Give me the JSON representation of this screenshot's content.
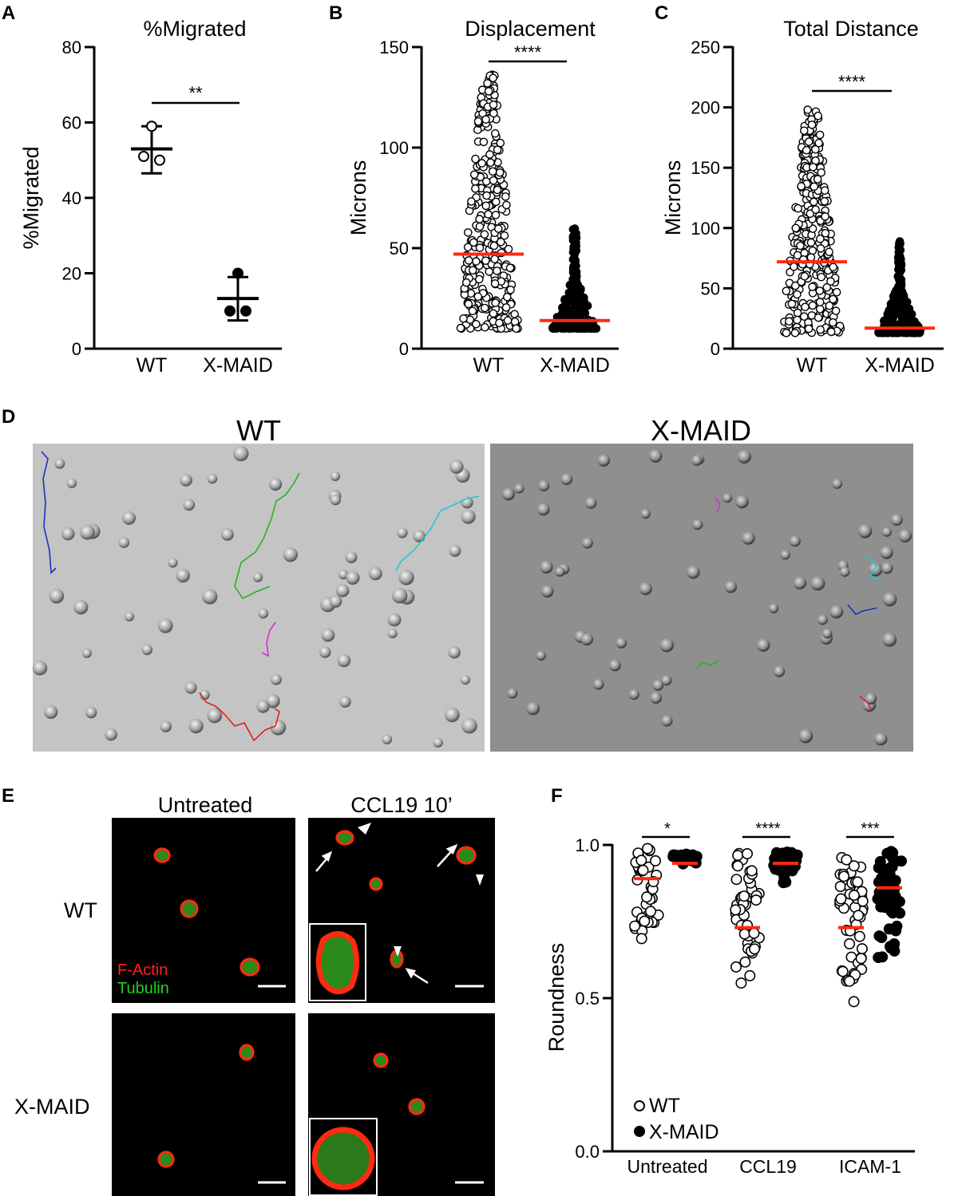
{
  "figure": {
    "panel_letters": [
      "A",
      "B",
      "C",
      "D",
      "E",
      "F"
    ]
  },
  "chart_data": [
    {
      "type": "scatter",
      "panel": "A",
      "title": "%Migrated",
      "xlabel": "",
      "ylabel": "%Migrated",
      "categories": [
        "WT",
        "X-MAID"
      ],
      "ylim": [
        0,
        80
      ],
      "yticks": [
        0,
        20,
        40,
        60,
        80
      ],
      "series": [
        {
          "category": "WT",
          "marker": "open",
          "points": [
            59,
            51,
            50
          ],
          "mean": 53,
          "sd_low": 46.5,
          "sd_high": 59
        },
        {
          "category": "X-MAID",
          "marker": "filled",
          "points": [
            20,
            10,
            10
          ],
          "mean": 13.3,
          "sd_low": 7.5,
          "sd_high": 19
        }
      ],
      "significance": "**"
    },
    {
      "type": "scatter",
      "panel": "B",
      "title": "Displacement",
      "xlabel": "",
      "ylabel": "Microns",
      "categories": [
        "WT",
        "X-MAID"
      ],
      "ylim": [
        0,
        150
      ],
      "yticks": [
        0,
        50,
        100,
        150
      ],
      "series": [
        {
          "category": "WT",
          "marker": "open",
          "n": 320,
          "min": 10,
          "max": 137,
          "median_line": 47
        },
        {
          "category": "X-MAID",
          "marker": "filled",
          "n": 200,
          "min": 10,
          "max": 60,
          "median_line": 14
        }
      ],
      "significance": "****"
    },
    {
      "type": "scatter",
      "panel": "C",
      "title": "Total Distance",
      "xlabel": "",
      "ylabel": "Microns",
      "categories": [
        "WT",
        "X-MAID"
      ],
      "ylim": [
        0,
        250
      ],
      "yticks": [
        0,
        50,
        100,
        150,
        200,
        250
      ],
      "series": [
        {
          "category": "WT",
          "marker": "open",
          "n": 330,
          "min": 13,
          "max": 198,
          "median_line": 72
        },
        {
          "category": "X-MAID",
          "marker": "filled",
          "n": 200,
          "min": 13,
          "max": 90,
          "median_line": 17
        }
      ],
      "significance": "****"
    },
    {
      "type": "scatter",
      "panel": "F",
      "title": "",
      "xlabel": "",
      "ylabel": "Roundness",
      "categories": [
        "Untreated",
        "CCL19",
        "ICAM-1"
      ],
      "ylim": [
        0,
        1
      ],
      "yticks": [
        "0.0",
        "0.5",
        "1.0"
      ],
      "legend": {
        "placement": "bottom-left",
        "entries": [
          "WT",
          "X-MAID"
        ]
      },
      "series": [
        {
          "name": "WT",
          "marker": "open",
          "groups": [
            {
              "category": "Untreated",
              "n": 40,
              "min": 0.66,
              "max": 0.99,
              "median_line": 0.89
            },
            {
              "category": "CCL19",
              "n": 45,
              "min": 0.52,
              "max": 0.98,
              "median_line": 0.73
            },
            {
              "category": "ICAM-1",
              "n": 50,
              "min": 0.39,
              "max": 0.96,
              "median_line": 0.73
            }
          ]
        },
        {
          "name": "X-MAID",
          "marker": "filled",
          "groups": [
            {
              "category": "Untreated",
              "n": 25,
              "min": 0.92,
              "max": 0.97,
              "median_line": 0.94
            },
            {
              "category": "CCL19",
              "n": 35,
              "min": 0.87,
              "max": 0.98,
              "median_line": 0.94
            },
            {
              "category": "ICAM-1",
              "n": 55,
              "min": 0.53,
              "max": 0.98,
              "median_line": 0.86
            }
          ]
        }
      ],
      "significance": [
        "*",
        "****",
        "***"
      ]
    }
  ],
  "panel_d": {
    "titles": [
      "WT",
      "X-MAID"
    ],
    "track_colors": [
      "#1f2fbf",
      "#22b522",
      "#20c8d2",
      "#d030d0",
      "#e02020"
    ]
  },
  "panel_e": {
    "column_titles": [
      "Untreated",
      "CCL19 10’"
    ],
    "row_labels": [
      "WT",
      "X-MAID"
    ],
    "stain_labels": [
      {
        "text": "F-Actin",
        "color": "#ff2020"
      },
      {
        "text": "Tubulin",
        "color": "#20d020"
      }
    ]
  },
  "colors": {
    "median_line": "#ff2a10",
    "background_d_wt": "#c4c4c4",
    "background_d_xmaid": "#8f8f8f"
  }
}
